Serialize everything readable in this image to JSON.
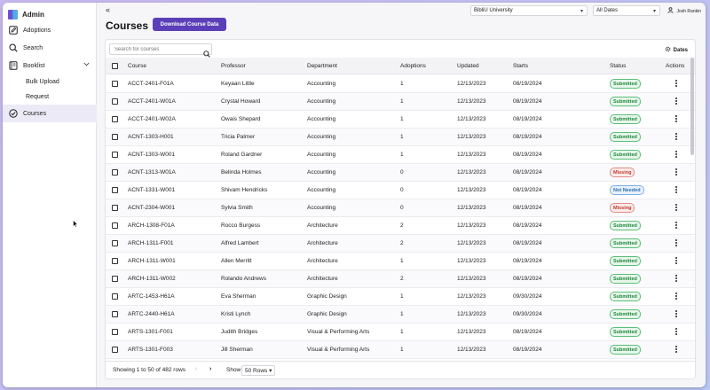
{
  "app": {
    "title": "Admin"
  },
  "sidebar": {
    "items": [
      {
        "label": "Adoptions",
        "icon": "pencil-box-icon"
      },
      {
        "label": "Search",
        "icon": "search-icon"
      },
      {
        "label": "Booklist",
        "icon": "book-icon"
      },
      {
        "label": "Courses",
        "icon": "check-circle-icon"
      }
    ],
    "subitems": [
      {
        "label": "Bulk Upload"
      },
      {
        "label": "Request"
      }
    ]
  },
  "topbar": {
    "collapse_glyph": "«",
    "university": "BibliU University",
    "dates": "All Dates",
    "user": "Josh Rankin"
  },
  "page": {
    "title": "Courses",
    "download_label": "Download Course Data"
  },
  "table": {
    "search_placeholder": "Search for courses",
    "dates_label": "Dates",
    "columns": [
      "Course",
      "Professor",
      "Department",
      "Adoptions",
      "Updated",
      "Starts",
      "Status",
      "Actions"
    ],
    "rows": [
      {
        "course": "ACCT-2401-F01A",
        "professor": "Keyaan Little",
        "department": "Accounting",
        "adoptions": "1",
        "updated": "12/13/2023",
        "starts": "08/19/2024",
        "status": "Submitted"
      },
      {
        "course": "ACCT-2401-W01A",
        "professor": "Crystal Howard",
        "department": "Accounting",
        "adoptions": "1",
        "updated": "12/13/2023",
        "starts": "08/19/2024",
        "status": "Submitted"
      },
      {
        "course": "ACCT-2401-W02A",
        "professor": "Owais Shepard",
        "department": "Accounting",
        "adoptions": "1",
        "updated": "12/13/2023",
        "starts": "08/19/2024",
        "status": "Submitted"
      },
      {
        "course": "ACNT-1303-H001",
        "professor": "Tricia Palmer",
        "department": "Accounting",
        "adoptions": "1",
        "updated": "12/13/2023",
        "starts": "08/19/2024",
        "status": "Submitted"
      },
      {
        "course": "ACNT-1303-W001",
        "professor": "Roland Gardner",
        "department": "Accounting",
        "adoptions": "1",
        "updated": "12/13/2023",
        "starts": "08/19/2024",
        "status": "Submitted"
      },
      {
        "course": "ACNT-1313-W01A",
        "professor": "Belinda Holmes",
        "department": "Accounting",
        "adoptions": "0",
        "updated": "12/13/2023",
        "starts": "08/19/2024",
        "status": "Missing"
      },
      {
        "course": "ACNT-1331-W001",
        "professor": "Shivam Hendricks",
        "department": "Accounting",
        "adoptions": "0",
        "updated": "12/13/2023",
        "starts": "08/19/2024",
        "status": "Not Needed"
      },
      {
        "course": "ACNT-2304-W001",
        "professor": "Sylvia Smith",
        "department": "Accounting",
        "adoptions": "0",
        "updated": "12/13/2023",
        "starts": "08/19/2024",
        "status": "Missing"
      },
      {
        "course": "ARCH-1308-F01A",
        "professor": "Rocco Burgess",
        "department": "Architecture",
        "adoptions": "2",
        "updated": "12/13/2023",
        "starts": "08/19/2024",
        "status": "Submitted"
      },
      {
        "course": "ARCH-1311-F001",
        "professor": "Alfred Lambert",
        "department": "Architecture",
        "adoptions": "2",
        "updated": "12/13/2023",
        "starts": "08/19/2024",
        "status": "Submitted"
      },
      {
        "course": "ARCH-1311-W001",
        "professor": "Allen Merritt",
        "department": "Architecture",
        "adoptions": "1",
        "updated": "12/13/2023",
        "starts": "08/19/2024",
        "status": "Submitted"
      },
      {
        "course": "ARCH-1311-W002",
        "professor": "Rolando Andrews",
        "department": "Architecture",
        "adoptions": "2",
        "updated": "12/13/2023",
        "starts": "08/19/2024",
        "status": "Submitted"
      },
      {
        "course": "ARTC-1453-H61A",
        "professor": "Eva Sherman",
        "department": "Graphic Design",
        "adoptions": "1",
        "updated": "12/13/2023",
        "starts": "09/30/2024",
        "status": "Submitted"
      },
      {
        "course": "ARTC-2440-H61A",
        "professor": "Kristi Lynch",
        "department": "Graphic Design",
        "adoptions": "1",
        "updated": "12/13/2023",
        "starts": "09/30/2024",
        "status": "Submitted"
      },
      {
        "course": "ARTS-1301-F001",
        "professor": "Judith Bridges",
        "department": "Visual & Performing Arts",
        "adoptions": "1",
        "updated": "12/13/2023",
        "starts": "08/19/2024",
        "status": "Submitted"
      },
      {
        "course": "ARTS-1301-F003",
        "professor": "Jill Sherman",
        "department": "Visual & Performing Arts",
        "adoptions": "1",
        "updated": "12/13/2023",
        "starts": "08/19/2024",
        "status": "Submitted"
      }
    ],
    "status_colors": {
      "Submitted": {
        "fg": "#1f8a3a",
        "bg": "#e8f6ec",
        "border": "#5bbf77"
      },
      "Missing": {
        "fg": "#c0392b",
        "bg": "#fcebea",
        "border": "#e38a82"
      },
      "Not Needed": {
        "fg": "#2a6fb5",
        "bg": "#e8f1fb",
        "border": "#7fb0e3"
      }
    }
  },
  "footer": {
    "showing": "Showing 1 to 50 of 482 rows",
    "prev": "‹",
    "next": "›",
    "show_label": "Show",
    "rows_option": "50 Rows"
  }
}
